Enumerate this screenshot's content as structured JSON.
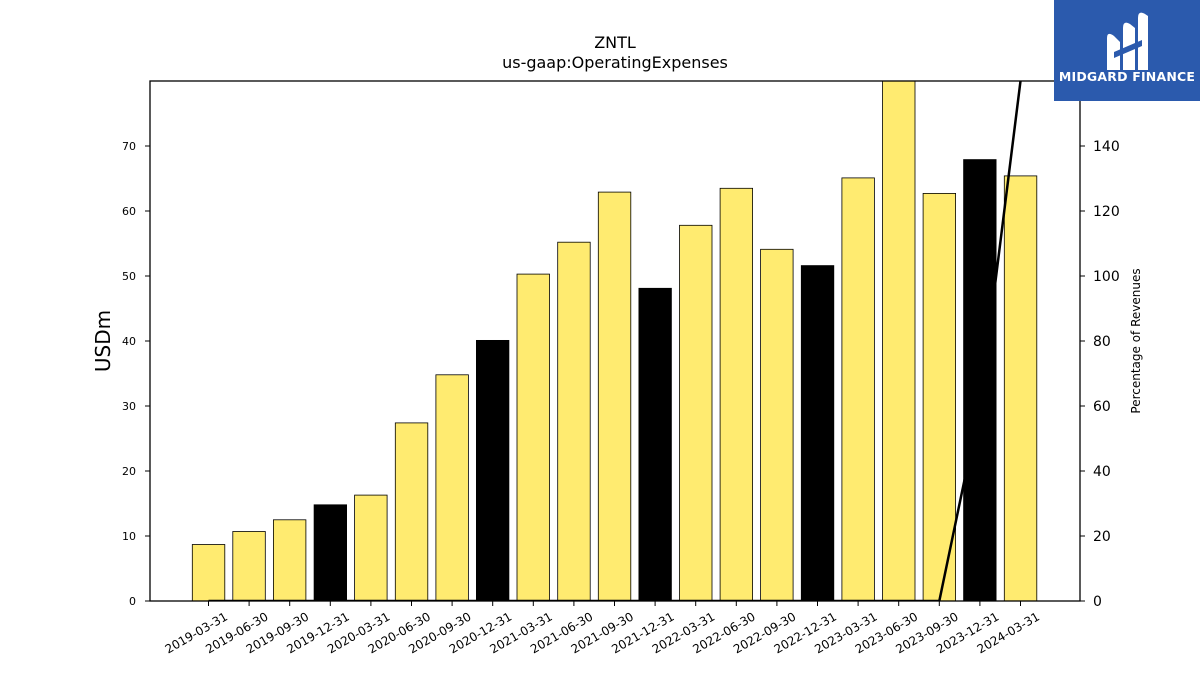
{
  "chart_data": {
    "type": "bar",
    "title": "ZNTL",
    "subtitle": "us-gaap:OperatingExpenses",
    "ylabel": "USDm",
    "y2label": "Percentage of Revenues",
    "ylim": [
      0,
      80
    ],
    "y2lim": [
      0,
      160
    ],
    "yticks": [
      0,
      10,
      20,
      30,
      40,
      50,
      60,
      70
    ],
    "y2ticks": [
      0,
      20,
      40,
      60,
      80,
      100,
      120,
      140
    ],
    "categories": [
      "2019-03-31",
      "2019-06-30",
      "2019-09-30",
      "2019-12-31",
      "2020-03-31",
      "2020-06-30",
      "2020-09-30",
      "2020-12-31",
      "2021-03-31",
      "2021-06-30",
      "2021-09-30",
      "2021-12-31",
      "2022-03-31",
      "2022-06-30",
      "2022-09-30",
      "2022-12-31",
      "2023-03-31",
      "2023-06-30",
      "2023-09-30",
      "2023-12-31",
      "2024-03-31"
    ],
    "values": [
      8.7,
      10.7,
      12.5,
      14.8,
      16.3,
      27.4,
      34.8,
      40.1,
      50.3,
      55.2,
      62.9,
      48.1,
      57.8,
      63.5,
      54.1,
      51.6,
      65.1,
      80.0,
      62.7,
      67.9,
      65.4
    ],
    "bar_colors": [
      "#ffeb70",
      "#ffeb70",
      "#ffeb70",
      "#000000",
      "#ffeb70",
      "#ffeb70",
      "#ffeb70",
      "#000000",
      "#ffeb70",
      "#ffeb70",
      "#ffeb70",
      "#000000",
      "#ffeb70",
      "#ffeb70",
      "#ffeb70",
      "#000000",
      "#ffeb70",
      "#ffeb70",
      "#ffeb70",
      "#000000",
      "#ffeb70"
    ],
    "series": [
      {
        "axis": "right",
        "values": [
          0,
          0,
          0,
          0,
          0,
          0,
          0,
          0,
          0,
          0,
          0,
          0,
          0,
          0,
          0,
          0,
          0,
          0,
          0,
          60,
          160
        ],
        "color": "#000000"
      }
    ],
    "grid": false,
    "legend": "none"
  },
  "logo": {
    "text": "MIDGARD FINANCE"
  }
}
